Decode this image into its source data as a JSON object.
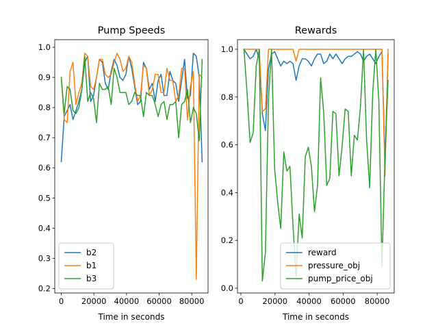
{
  "colors": {
    "blue": "#1f77b4",
    "orange": "#ff7f0e",
    "green": "#2ca02c",
    "axes": "#000000",
    "legend_border": "#cccccc"
  },
  "chart_data": [
    {
      "type": "line",
      "title": "Pump Speeds",
      "xlabel": "Time in seconds",
      "ylabel": "",
      "xlim": [
        -4000,
        90000
      ],
      "ylim": [
        0.185,
        1.025
      ],
      "xticks": [
        0,
        20000,
        40000,
        60000,
        80000
      ],
      "xtick_labels": [
        "0",
        "20000",
        "40000",
        "60000",
        "80000"
      ],
      "yticks": [
        0.2,
        0.3,
        0.4,
        0.5,
        0.6,
        0.7,
        0.8,
        0.9,
        1.0
      ],
      "ytick_labels": [
        "0.2",
        "0.3",
        "0.4",
        "0.5",
        "0.6",
        "0.7",
        "0.8",
        "0.9",
        "1.0"
      ],
      "grid": false,
      "legend_position": "lower-left",
      "x": [
        0,
        1800,
        3600,
        5400,
        7200,
        9000,
        10800,
        12600,
        14400,
        16200,
        18000,
        19800,
        21600,
        23400,
        25200,
        27000,
        28800,
        30600,
        32400,
        34200,
        36000,
        37800,
        39600,
        41400,
        43200,
        45000,
        46800,
        48600,
        50400,
        52200,
        54000,
        55800,
        57600,
        59400,
        61200,
        63000,
        64800,
        66600,
        68400,
        70200,
        72000,
        73800,
        75600,
        77400,
        79200,
        81000,
        82800,
        84600,
        86400
      ],
      "series": [
        {
          "name": "b2",
          "color": "#1f77b4",
          "values": [
            0.62,
            0.77,
            0.79,
            0.81,
            0.76,
            0.79,
            0.82,
            0.86,
            0.95,
            0.97,
            0.82,
            0.84,
            0.9,
            0.96,
            0.95,
            0.88,
            0.86,
            0.92,
            0.96,
            0.94,
            0.9,
            0.89,
            0.91,
            0.97,
            0.93,
            0.87,
            0.81,
            0.82,
            0.95,
            0.93,
            0.86,
            0.88,
            0.82,
            0.89,
            0.91,
            0.84,
            0.84,
            0.92,
            0.89,
            0.88,
            0.82,
            0.89,
            0.96,
            0.83,
            0.84,
            0.98,
            0.97,
            0.9,
            0.62
          ]
        },
        {
          "name": "b1",
          "color": "#ff7f0e",
          "values": [
            0.9,
            0.76,
            0.75,
            0.92,
            0.95,
            0.81,
            0.85,
            0.88,
            0.98,
            0.97,
            0.87,
            0.86,
            0.9,
            0.96,
            0.96,
            0.91,
            0.9,
            0.91,
            0.95,
            0.98,
            0.96,
            0.92,
            0.93,
            0.97,
            0.95,
            0.88,
            0.82,
            0.84,
            0.94,
            0.93,
            0.84,
            0.86,
            0.91,
            0.91,
            0.85,
            0.85,
            0.93,
            0.89,
            0.89,
            0.82,
            0.84,
            0.93,
            0.93,
            0.76,
            0.87,
            0.92,
            0.23,
            0.91,
            0.9
          ]
        },
        {
          "name": "b3",
          "color": "#2ca02c",
          "values": [
            0.9,
            0.78,
            0.87,
            0.86,
            0.79,
            0.78,
            0.8,
            0.86,
            0.97,
            0.82,
            0.85,
            0.83,
            0.75,
            0.88,
            0.86,
            0.86,
            0.87,
            0.81,
            0.93,
            0.9,
            0.85,
            0.85,
            0.85,
            0.81,
            0.82,
            0.85,
            0.84,
            0.84,
            0.77,
            0.85,
            0.84,
            0.84,
            0.81,
            0.77,
            0.81,
            0.82,
            0.76,
            0.81,
            0.81,
            0.82,
            0.7,
            0.81,
            0.82,
            0.86,
            0.75,
            0.8,
            0.78,
            0.69,
            0.96
          ]
        }
      ]
    },
    {
      "type": "line",
      "title": "Rewards",
      "xlabel": "Time in seconds",
      "ylabel": "",
      "xlim": [
        -2000,
        90000
      ],
      "ylim": [
        -0.02,
        1.04
      ],
      "xticks": [
        0,
        20000,
        40000,
        60000,
        80000
      ],
      "xtick_labels": [
        "0",
        "20000",
        "40000",
        "60000",
        "80000"
      ],
      "yticks": [
        0.0,
        0.2,
        0.4,
        0.6,
        0.8,
        1.0
      ],
      "ytick_labels": [
        "0.0",
        "0.2",
        "0.4",
        "0.6",
        "0.8",
        "1.0"
      ],
      "grid": false,
      "legend_position": "lower-right",
      "x": [
        1800,
        3600,
        5400,
        7200,
        9000,
        10800,
        12600,
        14400,
        16200,
        18000,
        19800,
        21600,
        23400,
        25200,
        27000,
        28800,
        30600,
        32400,
        34200,
        36000,
        37800,
        39600,
        41400,
        43200,
        45000,
        46800,
        48600,
        50400,
        52200,
        54000,
        55800,
        57600,
        59400,
        61200,
        63000,
        64800,
        66600,
        68400,
        70200,
        72000,
        73800,
        75600,
        77400,
        79200,
        81000,
        82800,
        84600,
        86400
      ],
      "series": [
        {
          "name": "reward",
          "color": "#1f77b4",
          "values": [
            1.0,
            0.98,
            0.96,
            0.97,
            1.0,
            0.96,
            0.73,
            0.66,
            0.92,
            0.98,
            0.99,
            0.96,
            0.93,
            0.95,
            0.94,
            0.95,
            0.94,
            0.87,
            0.93,
            0.96,
            0.96,
            0.95,
            0.93,
            0.96,
            0.98,
            0.98,
            0.94,
            0.95,
            0.98,
            0.96,
            0.98,
            0.96,
            0.94,
            0.96,
            0.97,
            0.97,
            0.98,
            0.99,
            0.98,
            0.95,
            0.97,
            0.98,
            0.96,
            0.94,
            0.97,
            0.99,
            0.53,
            0.98
          ]
        },
        {
          "name": "pressure_obj",
          "color": "#ff7f0e",
          "values": [
            1.0,
            1.0,
            1.0,
            1.0,
            1.0,
            1.0,
            0.74,
            0.75,
            1.0,
            1.0,
            1.0,
            1.0,
            1.0,
            1.0,
            1.0,
            1.0,
            1.0,
            0.95,
            1.0,
            1.0,
            1.0,
            1.0,
            1.0,
            1.0,
            1.0,
            1.0,
            1.0,
            1.0,
            1.0,
            1.0,
            1.0,
            1.0,
            1.0,
            1.0,
            1.0,
            1.0,
            1.0,
            1.0,
            1.0,
            1.0,
            1.0,
            1.0,
            1.0,
            1.0,
            1.0,
            1.0,
            0.47,
            1.0
          ]
        },
        {
          "name": "pump_price_obj",
          "color": "#2ca02c",
          "values": [
            1.0,
            0.82,
            0.61,
            0.65,
            0.93,
            1.0,
            0.03,
            0.15,
            0.79,
            1.0,
            0.5,
            0.36,
            0.25,
            0.57,
            0.49,
            0.51,
            0.26,
            0.05,
            0.31,
            0.21,
            0.55,
            0.59,
            0.51,
            0.32,
            0.43,
            0.88,
            0.74,
            0.43,
            0.46,
            0.74,
            0.73,
            0.47,
            0.59,
            0.75,
            0.74,
            0.47,
            0.64,
            0.62,
            0.76,
            1.0,
            0.62,
            0.42,
            0.82,
            1.0,
            0.78,
            0.09,
            0.55,
            0.87
          ]
        }
      ]
    }
  ]
}
